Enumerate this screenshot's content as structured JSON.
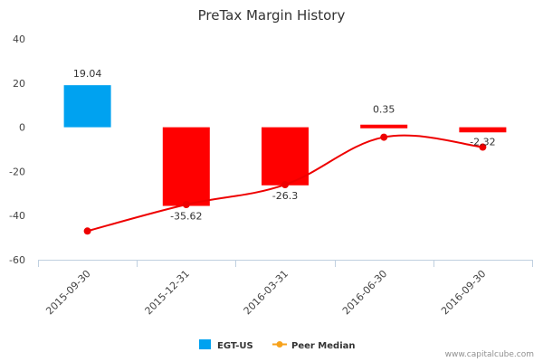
{
  "chart_data": {
    "type": "bar",
    "title": "PreTax Margin History",
    "categories": [
      "2015-09-30",
      "2015-12-31",
      "2016-03-31",
      "2016-06-30",
      "2016-09-30"
    ],
    "series": [
      {
        "name": "EGT-US",
        "type": "bar",
        "values": [
          19.04,
          -35.62,
          -26.3,
          0.35,
          -2.32
        ],
        "colors": [
          "#00a2f0",
          "#ff0000",
          "#ff0000",
          "#ff0000",
          "#ff0000"
        ]
      },
      {
        "name": "Peer Median",
        "type": "line",
        "values": [
          -47,
          -35,
          -26,
          -4.5,
          -9
        ],
        "color": "#ee0000"
      }
    ],
    "ylim": [
      -60,
      40
    ],
    "yticks": [
      -60,
      -40,
      -20,
      0,
      20,
      40
    ],
    "ytick_labels": [
      "-60",
      "-40",
      "-20",
      "0",
      "20",
      "40"
    ],
    "data_labels": [
      "19.04",
      "-35.62",
      "-26.3",
      "0.35",
      "-2.32"
    ],
    "grid": false,
    "legend": {
      "position": "bottom-center",
      "items": [
        {
          "label": "EGT-US",
          "color": "#00a2f0",
          "marker": "square"
        },
        {
          "label": "Peer Median",
          "color": "#f7a21b",
          "marker": "line-dot"
        }
      ]
    }
  },
  "credit": "www.capitalcube.com"
}
